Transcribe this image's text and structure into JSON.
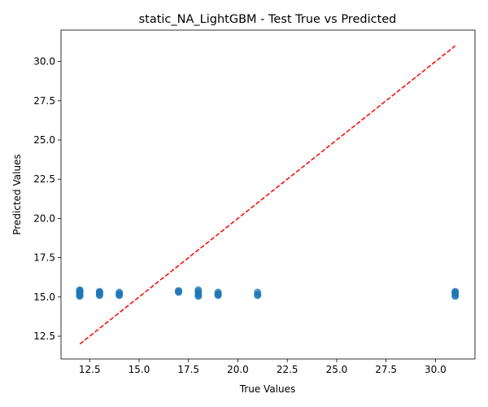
{
  "chart_data": {
    "type": "scatter",
    "title": "static_NA_LightGBM - Test True vs Predicted",
    "xlabel": "True Values",
    "ylabel": "Predicted Values",
    "xlim": [
      11.05,
      32.0
    ],
    "ylim": [
      11.05,
      32.0
    ],
    "xticks": [
      "12.5",
      "15.0",
      "17.5",
      "20.0",
      "22.5",
      "25.0",
      "27.5",
      "30.0"
    ],
    "yticks": [
      "12.5",
      "15.0",
      "17.5",
      "20.0",
      "22.5",
      "25.0",
      "27.5",
      "30.0"
    ],
    "grid": false,
    "point_color": "#1f77b4",
    "reference_line": {
      "from": [
        12,
        12
      ],
      "to": [
        31,
        31
      ],
      "color": "#ff0000",
      "style": "dashed"
    },
    "points": [
      [
        12,
        15.45
      ],
      [
        12,
        15.4
      ],
      [
        12,
        15.35
      ],
      [
        12,
        15.3
      ],
      [
        12,
        15.2
      ],
      [
        12,
        15.15
      ],
      [
        12,
        15.1
      ],
      [
        12,
        15.05
      ],
      [
        13,
        15.35
      ],
      [
        13,
        15.3
      ],
      [
        13,
        15.25
      ],
      [
        13,
        15.15
      ],
      [
        13,
        15.1
      ],
      [
        14,
        15.3
      ],
      [
        14,
        15.2
      ],
      [
        14,
        15.15
      ],
      [
        14,
        15.1
      ],
      [
        17,
        15.4
      ],
      [
        17,
        15.35
      ],
      [
        17,
        15.3
      ],
      [
        18,
        15.45
      ],
      [
        18,
        15.35
      ],
      [
        18,
        15.2
      ],
      [
        18,
        15.1
      ],
      [
        18,
        15.05
      ],
      [
        19,
        15.3
      ],
      [
        19,
        15.2
      ],
      [
        19,
        15.15
      ],
      [
        19,
        15.1
      ],
      [
        21,
        15.3
      ],
      [
        21,
        15.15
      ],
      [
        21,
        15.1
      ],
      [
        31,
        15.35
      ],
      [
        31,
        15.3
      ],
      [
        31,
        15.25
      ],
      [
        31,
        15.1
      ],
      [
        31,
        15.05
      ]
    ]
  }
}
